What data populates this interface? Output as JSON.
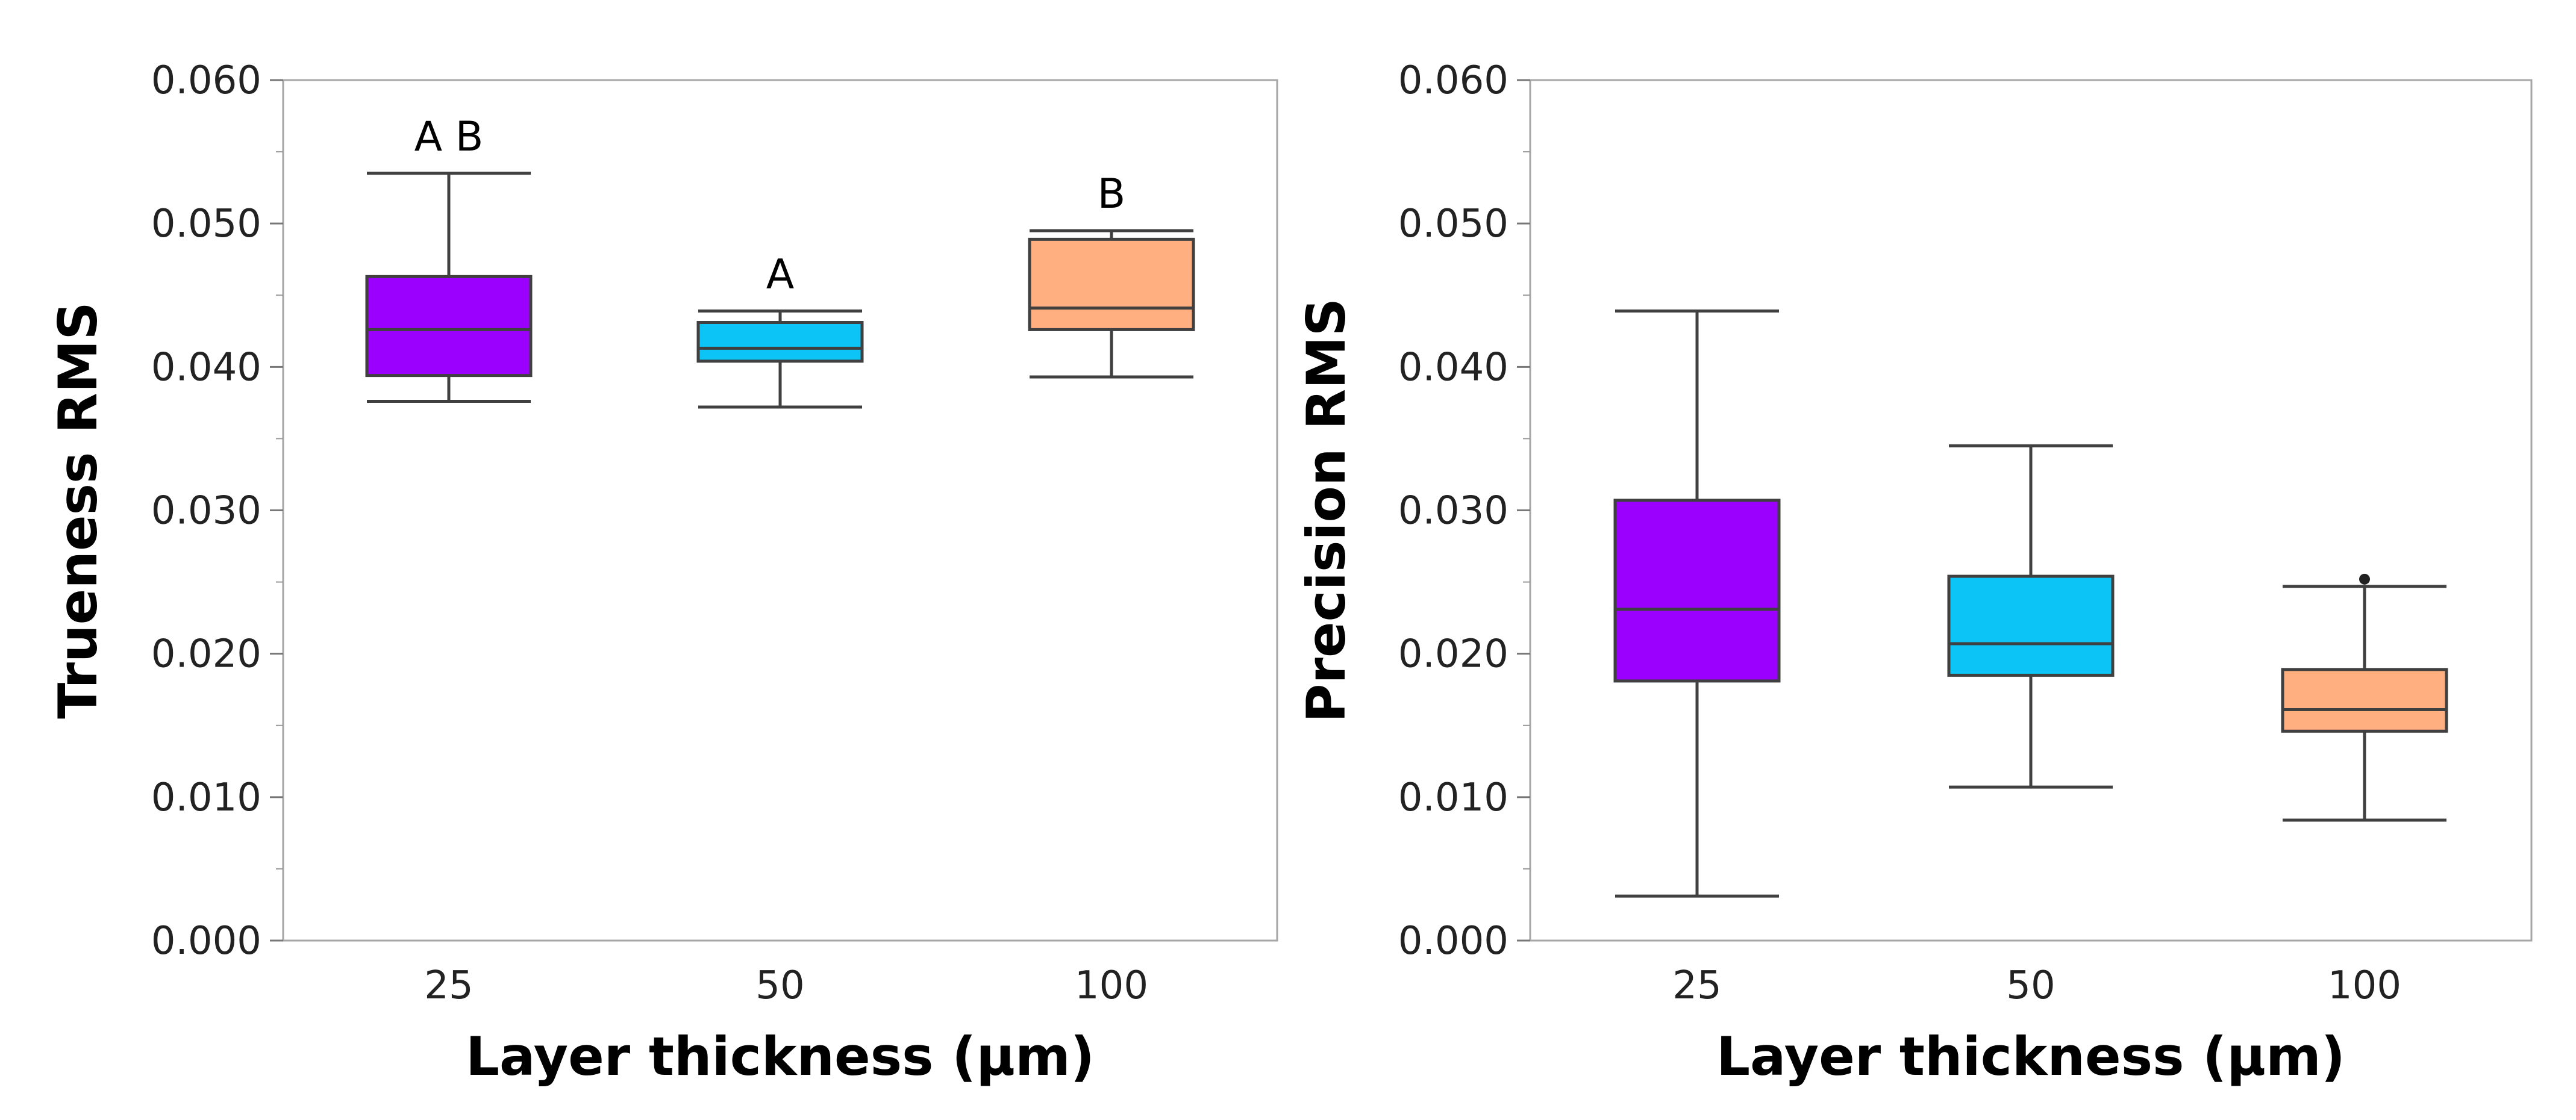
{
  "chart_data": [
    {
      "type": "box",
      "xlabel": "Layer thickness (µm)",
      "ylabel": "Trueness RMS",
      "ylim": [
        0,
        0.06
      ],
      "yticks": [
        "0.000",
        "0.010",
        "0.020",
        "0.030",
        "0.040",
        "0.050",
        "0.060"
      ],
      "categories": [
        "25",
        "50",
        "100"
      ],
      "boxes": [
        {
          "category": "25",
          "color": "#9B00FF",
          "whisker_low": 0.0376,
          "q1": 0.0394,
          "median": 0.0426,
          "q3": 0.0463,
          "whisker_high": 0.0535,
          "outliers": [],
          "label": "A B"
        },
        {
          "category": "50",
          "color": "#0CC4F5",
          "whisker_low": 0.0372,
          "q1": 0.0404,
          "median": 0.0413,
          "q3": 0.0431,
          "whisker_high": 0.0439,
          "outliers": [],
          "label": "A"
        },
        {
          "category": "100",
          "color": "#FFAF80",
          "whisker_low": 0.0393,
          "q1": 0.0426,
          "median": 0.0441,
          "q3": 0.0489,
          "whisker_high": 0.0495,
          "outliers": [],
          "label": "B"
        }
      ]
    },
    {
      "type": "box",
      "xlabel": "Layer thickness (µm)",
      "ylabel": "Precision RMS",
      "ylim": [
        0,
        0.06
      ],
      "yticks": [
        "0.000",
        "0.010",
        "0.020",
        "0.030",
        "0.040",
        "0.050",
        "0.060"
      ],
      "categories": [
        "25",
        "50",
        "100"
      ],
      "boxes": [
        {
          "category": "25",
          "color": "#9B00FF",
          "whisker_low": 0.0031,
          "q1": 0.0181,
          "median": 0.0231,
          "q3": 0.0307,
          "whisker_high": 0.0439,
          "outliers": [],
          "label": ""
        },
        {
          "category": "50",
          "color": "#0CC4F5",
          "whisker_low": 0.0107,
          "q1": 0.0185,
          "median": 0.0207,
          "q3": 0.0254,
          "whisker_high": 0.0345,
          "outliers": [],
          "label": ""
        },
        {
          "category": "100",
          "color": "#FFAF80",
          "whisker_low": 0.0084,
          "q1": 0.0146,
          "median": 0.0161,
          "q3": 0.0189,
          "whisker_high": 0.0247,
          "outliers": [
            0.0252
          ],
          "label": ""
        }
      ]
    }
  ]
}
